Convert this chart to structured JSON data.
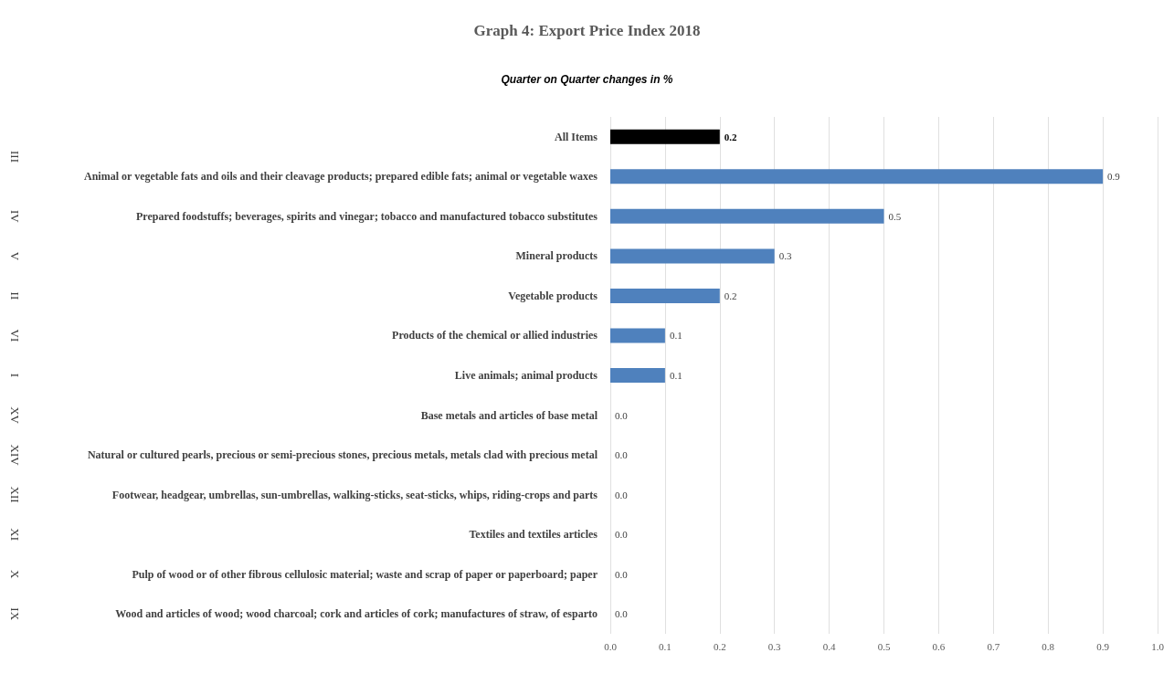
{
  "chart_data": {
    "type": "bar",
    "orientation": "horizontal",
    "title": "Graph 4: Export Price Index 2018",
    "subtitle": "Quarter on Quarter changes in %",
    "categories": [
      "All Items",
      "Animal or vegetable fats and oils and their cleavage products; prepared edible fats; animal or vegetable waxes",
      "Prepared foodstuffs; beverages, spirits and vinegar; tobacco and manufactured tobacco substitutes",
      "Mineral products",
      "Vegetable products",
      "Products of the chemical or allied industries",
      "Live animals; animal products",
      "Base metals and articles of base metal",
      "Natural or cultured pearls, precious or semi-precious stones, precious metals, metals clad with precious metal",
      "Footwear, headgear, umbrellas, sun-umbrellas, walking-sticks, seat-sticks, whips, riding-crops and parts",
      "Textiles and textiles articles",
      "Pulp of wood or of other fibrous cellulosic material; waste and scrap of paper or paperboard; paper",
      "Wood and articles of wood; wood charcoal; cork and articles of cork; manufactures of straw, of esparto"
    ],
    "values": [
      0.2,
      0.9,
      0.5,
      0.3,
      0.2,
      0.1,
      0.1,
      0,
      0,
      0,
      0,
      0,
      0
    ],
    "value_labels": [
      "0.2",
      "0.9",
      "0.5",
      "0.3",
      "0.2",
      "0.1",
      "0.1",
      "0.0",
      "0.0",
      "0.0",
      "0.0",
      "0.0",
      "0.0"
    ],
    "colors": [
      "#000000",
      "#4f81bd",
      "#4f81bd",
      "#4f81bd",
      "#4f81bd",
      "#4f81bd",
      "#4f81bd",
      "#4f81bd",
      "#4f81bd",
      "#4f81bd",
      "#4f81bd",
      "#4f81bd",
      "#4f81bd"
    ],
    "xlim": [
      0,
      1
    ],
    "xticks": [
      {
        "value": 0,
        "label": "0.0"
      },
      {
        "value": 0.1,
        "label": "0.1"
      },
      {
        "value": 0.2,
        "label": "0.2"
      },
      {
        "value": 0.3,
        "label": "0.3"
      },
      {
        "value": 0.4,
        "label": "0.4"
      },
      {
        "value": 0.5,
        "label": "0.5"
      },
      {
        "value": 0.6,
        "label": "0.6"
      },
      {
        "value": 0.7,
        "label": "0.7"
      },
      {
        "value": 0.8,
        "label": "0.8"
      },
      {
        "value": 0.9,
        "label": "0.9"
      },
      {
        "value": 1,
        "label": "1.0"
      }
    ],
    "grid": "x",
    "annotations": [
      "III",
      "IV",
      "V",
      "II",
      "VI",
      "I",
      "XV",
      "XIV",
      "XII",
      "XI",
      "X",
      "IX"
    ]
  }
}
